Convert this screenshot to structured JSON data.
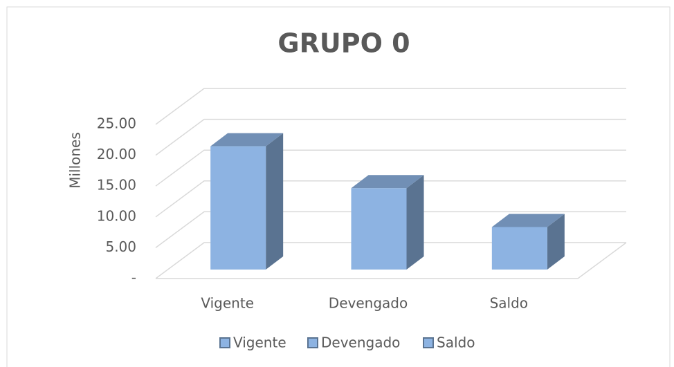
{
  "chart_data": {
    "type": "bar3d",
    "title": "GRUPO 0",
    "y_label": "Millones",
    "categories": [
      "Vigente",
      "Devengado",
      "Saldo"
    ],
    "values": [
      20.0,
      13.2,
      6.9
    ],
    "color": "#8db3e2",
    "ylim": [
      0,
      25
    ],
    "yticks": [
      {
        "value": 0,
        "label": "-"
      },
      {
        "value": 5,
        "label": "5.00"
      },
      {
        "value": 10,
        "label": "10.00"
      },
      {
        "value": 15,
        "label": "15.00"
      },
      {
        "value": 20,
        "label": "20.00"
      },
      {
        "value": 25,
        "label": "25.00"
      }
    ],
    "grid": true,
    "legend": "bottom"
  }
}
